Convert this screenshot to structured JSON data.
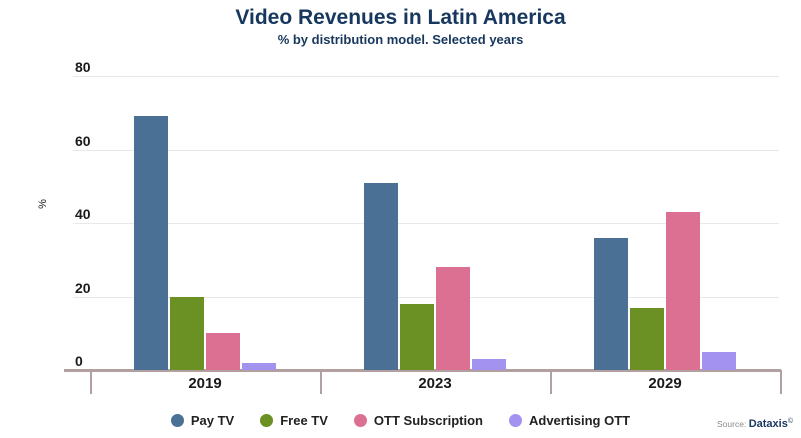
{
  "chart_data": {
    "type": "bar",
    "title": "Video Revenues in Latin America",
    "subtitle": "% by distribution model. Selected years",
    "xlabel": "",
    "ylabel": "%",
    "categories": [
      "2019",
      "2023",
      "2029"
    ],
    "series": [
      {
        "name": "Pay TV",
        "color": "#4a7195",
        "values": [
          69,
          51,
          36
        ]
      },
      {
        "name": "Free TV",
        "color": "#6b9023",
        "values": [
          20,
          18,
          17
        ]
      },
      {
        "name": "OTT Subscription",
        "color": "#dc7093",
        "values": [
          10,
          28,
          43
        ]
      },
      {
        "name": "Advertising OTT",
        "color": "#a392ef",
        "values": [
          2,
          3,
          5
        ]
      }
    ],
    "ylim": [
      0,
      80
    ],
    "yticks": [
      0,
      20,
      40,
      60,
      80
    ],
    "grid": true,
    "legend_position": "bottom"
  },
  "source": {
    "label": "Source:",
    "name": "Dataxis",
    "symbol": "©"
  },
  "colors": {
    "title": "#17375e",
    "axis_line": "#b2a0a0",
    "gridline": "#e8e8e8"
  }
}
